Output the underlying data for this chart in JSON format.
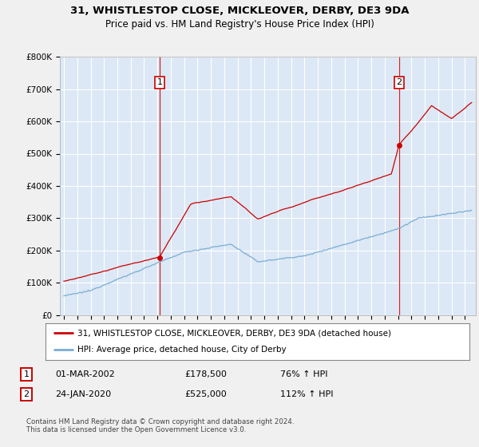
{
  "title_line1": "31, WHISTLESTOP CLOSE, MICKLEOVER, DERBY, DE3 9DA",
  "title_line2": "Price paid vs. HM Land Registry's House Price Index (HPI)",
  "legend_label1": "31, WHISTLESTOP CLOSE, MICKLEOVER, DERBY, DE3 9DA (detached house)",
  "legend_label2": "HPI: Average price, detached house, City of Derby",
  "annotation1_label": "1",
  "annotation1_date": "01-MAR-2002",
  "annotation1_price": "£178,500",
  "annotation1_pct": "76% ↑ HPI",
  "annotation2_label": "2",
  "annotation2_date": "24-JAN-2020",
  "annotation2_price": "£525,000",
  "annotation2_pct": "112% ↑ HPI",
  "footnote": "Contains HM Land Registry data © Crown copyright and database right 2024.\nThis data is licensed under the Open Government Licence v3.0.",
  "vline1_year": 2002.17,
  "vline2_year": 2020.07,
  "sale1_year": 2002.17,
  "sale1_price": 178500,
  "sale2_year": 2020.07,
  "sale2_price": 525000,
  "ylim": [
    0,
    800000
  ],
  "xlim_left": 1994.7,
  "xlim_right": 2025.8,
  "color_red": "#cc0000",
  "color_blue": "#7aadd4",
  "color_vline": "#cc0000",
  "background_color": "#f0f0f0",
  "plot_bg_color": "#dce8f5",
  "grid_color": "#ffffff",
  "title_fontsize": 9.5,
  "subtitle_fontsize": 8.5
}
